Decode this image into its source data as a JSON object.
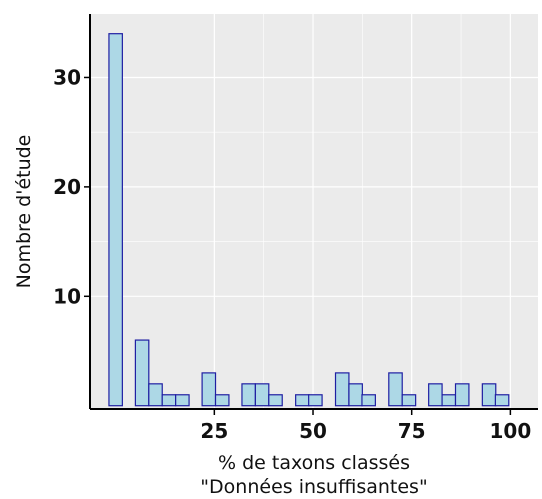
{
  "chart_data": {
    "type": "bar",
    "title": "",
    "xlabel_lines": [
      "% de taxons classés",
      "\"Données insuffisantes\""
    ],
    "ylabel": "Nombre d'étude",
    "x_ticks": [
      25,
      50,
      75,
      100
    ],
    "x_tick_labels": [
      "25",
      "50",
      "75",
      "100"
    ],
    "y_ticks": [
      10,
      20,
      30
    ],
    "y_tick_labels": [
      "10",
      "20",
      "30"
    ],
    "xlim": [
      -6.5,
      107
    ],
    "ylim": [
      -0.3,
      35.8
    ],
    "bin_width": 3.4,
    "bin_centers": [
      0,
      6.7,
      10.1,
      13.5,
      16.9,
      23.6,
      27.0,
      33.7,
      37.1,
      40.5,
      47.3,
      50.6,
      57.4,
      60.8,
      64.1,
      70.9,
      74.3,
      81.0,
      84.4,
      87.8,
      94.6,
      97.9
    ],
    "values": [
      34,
      6,
      2,
      1,
      1,
      3,
      1,
      2,
      2,
      1,
      1,
      1,
      3,
      2,
      1,
      3,
      1,
      2,
      1,
      2,
      2,
      1
    ],
    "grid": true,
    "colors": {
      "panel_background": "#ebebeb",
      "grid": "#ffffff",
      "bar_fill": "#add8e6",
      "bar_stroke": "#1f1fa3",
      "axis": "#000000"
    }
  }
}
